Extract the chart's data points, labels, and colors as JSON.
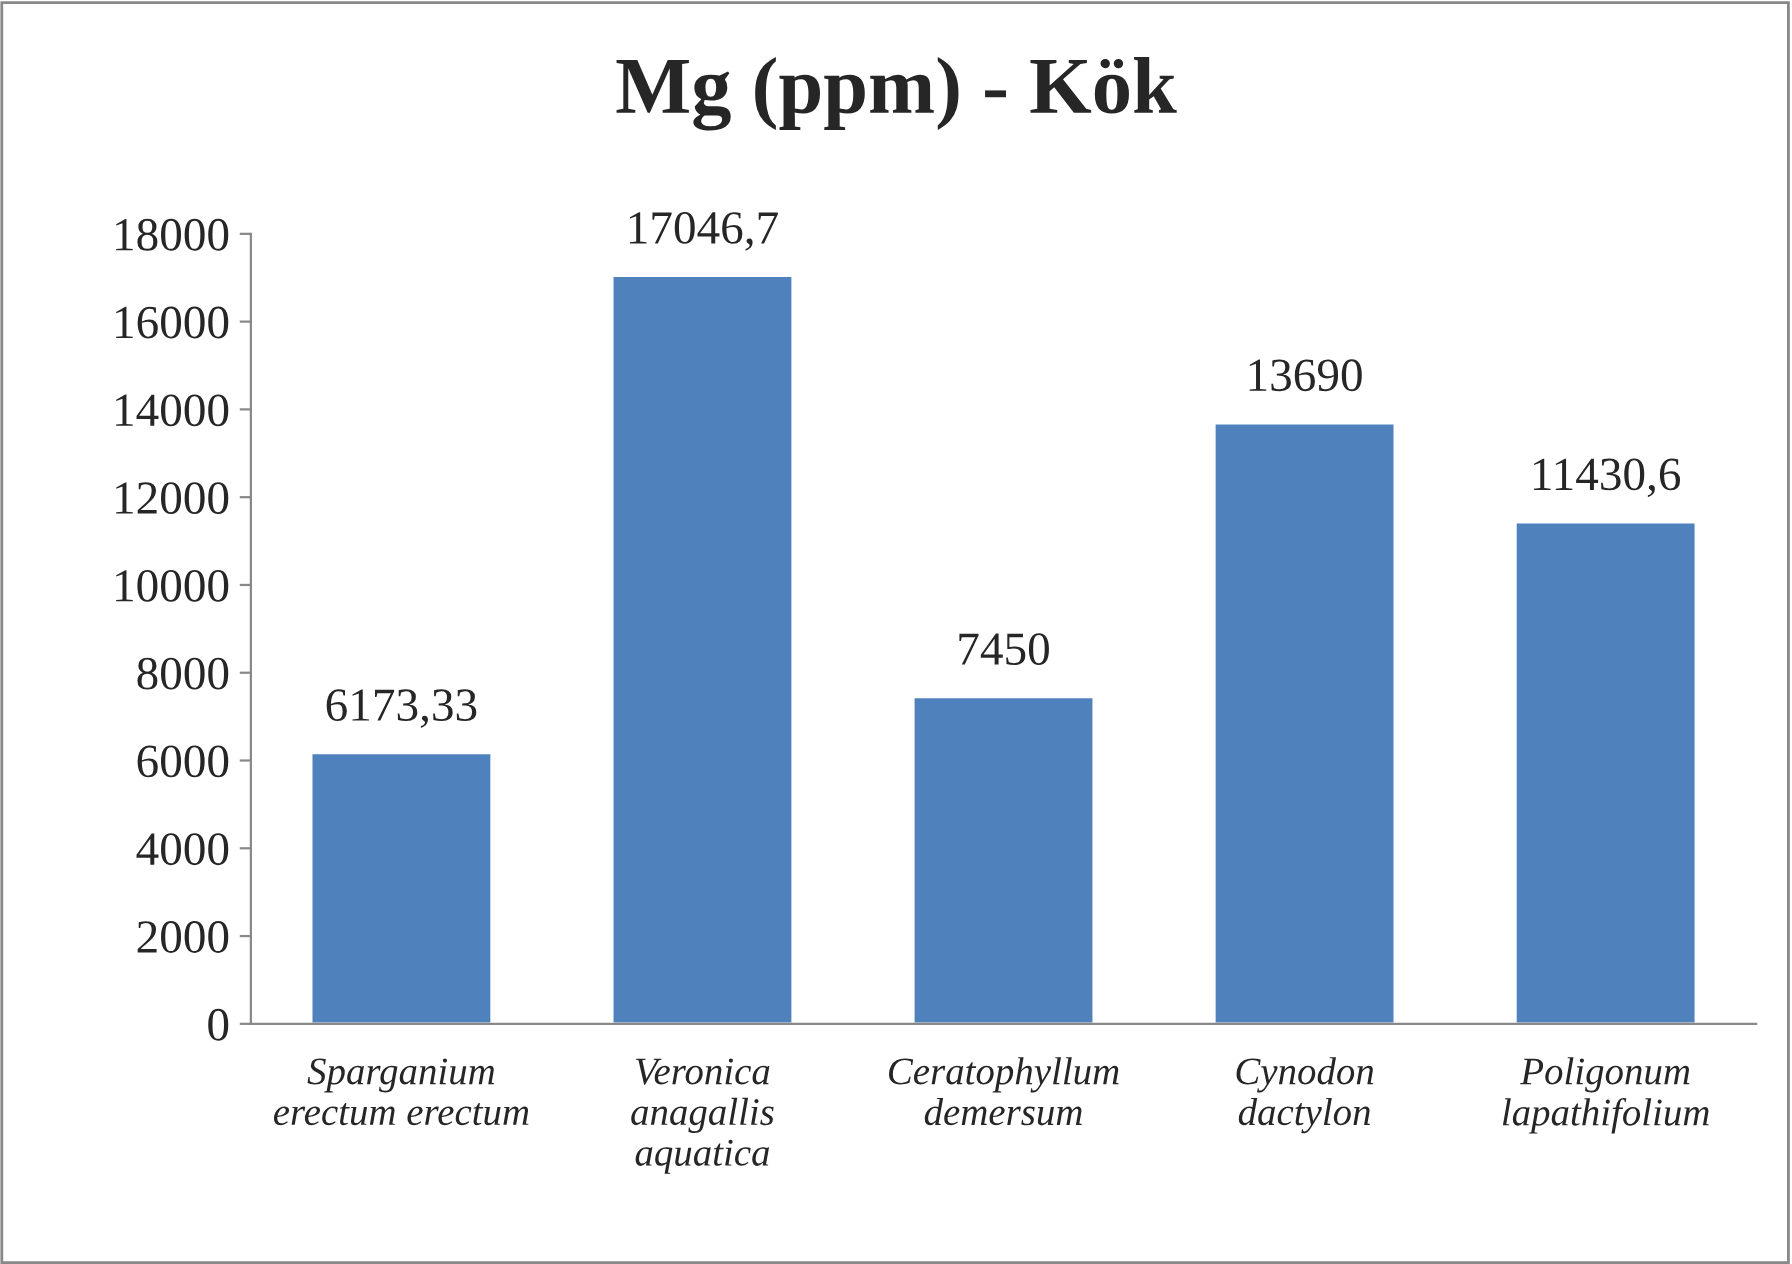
{
  "chart_data": {
    "type": "bar",
    "title": "Mg (ppm) - Kök",
    "categories": [
      "Sparganium\nerectum erectum",
      "Veronica\nanagallis\naquatica",
      "Ceratophyllum\ndemersum",
      "Cynodon\ndactylon",
      "Poligonum\nlapathifolium"
    ],
    "values": [
      6173.33,
      17046.7,
      7450,
      13690,
      11430.6
    ],
    "value_labels": [
      "6173,33",
      "17046,7",
      "7450",
      "13690",
      "11430,6"
    ],
    "color": "#4f81bd",
    "ylim": [
      0,
      18000
    ],
    "yticks": [
      0,
      2000,
      4000,
      6000,
      8000,
      10000,
      12000,
      14000,
      16000,
      18000
    ],
    "grid": false,
    "legend": false
  }
}
